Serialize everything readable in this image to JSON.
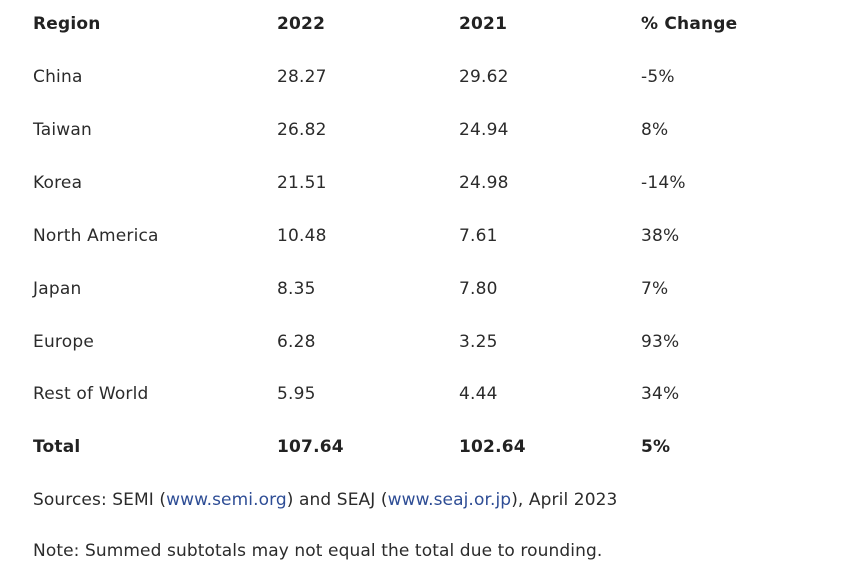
{
  "table": {
    "headers": [
      "Region",
      "2022",
      "2021",
      "% Change"
    ],
    "rows": [
      [
        "China",
        "28.27",
        "29.62",
        "-5%"
      ],
      [
        "Taiwan",
        "26.82",
        "24.94",
        "8%"
      ],
      [
        "Korea",
        "21.51",
        "24.98",
        "-14%"
      ],
      [
        "North America",
        "10.48",
        "7.61",
        "38%"
      ],
      [
        "Japan",
        "8.35",
        "7.80",
        "7%"
      ],
      [
        "Europe",
        "6.28",
        "3.25",
        "93%"
      ],
      [
        "Rest of World",
        "5.95",
        "4.44",
        "34%"
      ]
    ],
    "total": [
      "Total",
      "107.64",
      "102.64",
      "5%"
    ]
  },
  "sources": {
    "prefix": "Sources: SEMI (",
    "link1": "www.semi.org",
    "middle": ") and SEAJ (",
    "link2": "www.seaj.or.jp",
    "suffix": "), April 2023"
  },
  "note": "Note: Summed subtotals may not equal the total due to rounding.",
  "colors": {
    "text": "#2b2b2b",
    "link": "#2e4d95",
    "background": "#ffffff"
  }
}
